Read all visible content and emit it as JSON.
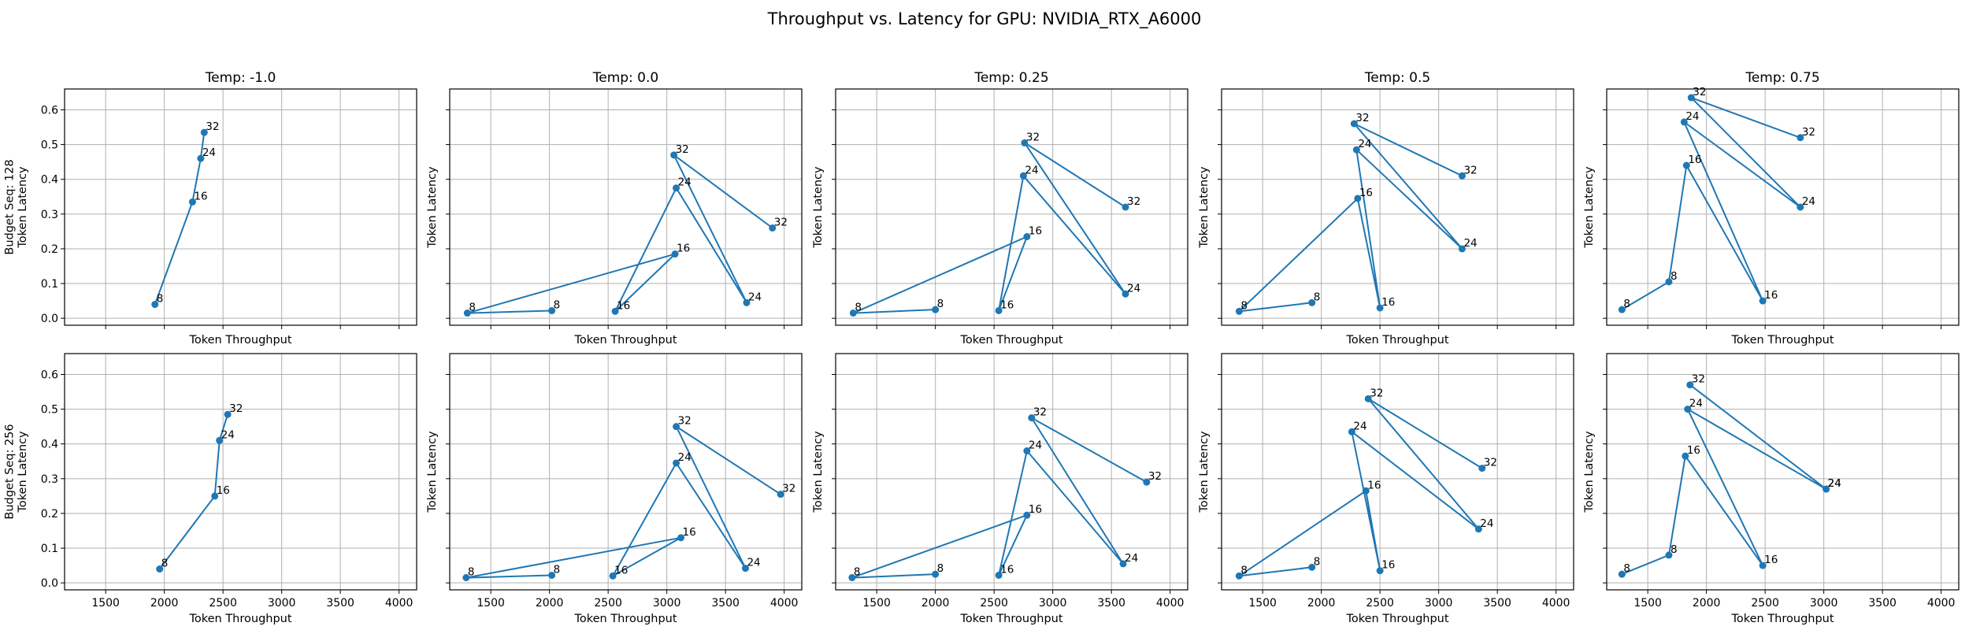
{
  "figure": {
    "title": "Throughput vs. Latency for GPU: NVIDIA_RTX_A6000"
  },
  "chart_data": [
    {
      "type": "line",
      "row": 0,
      "col": 0,
      "title": "Temp: -1.0",
      "xlabel": "Token Throughput",
      "ylabel": "Budget Seq: 128\nToken Latency",
      "xlim": [
        1150,
        4150
      ],
      "ylim": [
        -0.02,
        0.66
      ],
      "xticks": [
        1500,
        2000,
        2500,
        3000,
        3500,
        4000
      ],
      "yticks": [
        0.0,
        0.1,
        0.2,
        0.3,
        0.4,
        0.5,
        0.6
      ],
      "grid": true,
      "points": [
        {
          "x": 1920,
          "y": 0.04,
          "label": "8"
        },
        {
          "x": 2240,
          "y": 0.335,
          "label": "16"
        },
        {
          "x": 2310,
          "y": 0.46,
          "label": "24"
        },
        {
          "x": 2340,
          "y": 0.535,
          "label": "32"
        }
      ]
    },
    {
      "type": "line",
      "row": 0,
      "col": 1,
      "title": "Temp: 0.0",
      "xlabel": "Token Throughput",
      "ylabel": "Token Latency",
      "xlim": [
        1150,
        4150
      ],
      "ylim": [
        -0.02,
        0.66
      ],
      "xticks": [
        1500,
        2000,
        2500,
        3000,
        3500,
        4000
      ],
      "yticks": [
        0.0,
        0.1,
        0.2,
        0.3,
        0.4,
        0.5,
        0.6
      ],
      "grid": true,
      "points": [
        {
          "x": 2020,
          "y": 0.022,
          "label": "8"
        },
        {
          "x": 1300,
          "y": 0.015,
          "label": "8"
        },
        {
          "x": 3070,
          "y": 0.185,
          "label": "16"
        },
        {
          "x": 2560,
          "y": 0.02,
          "label": "16"
        },
        {
          "x": 3080,
          "y": 0.375,
          "label": "24"
        },
        {
          "x": 3680,
          "y": 0.045,
          "label": "24"
        },
        {
          "x": 3060,
          "y": 0.47,
          "label": "32"
        },
        {
          "x": 3900,
          "y": 0.26,
          "label": "32"
        }
      ]
    },
    {
      "type": "line",
      "row": 0,
      "col": 2,
      "title": "Temp: 0.25",
      "xlabel": "Token Throughput",
      "ylabel": "Token Latency",
      "xlim": [
        1150,
        4150
      ],
      "ylim": [
        -0.02,
        0.66
      ],
      "xticks": [
        1500,
        2000,
        2500,
        3000,
        3500,
        4000
      ],
      "yticks": [
        0.0,
        0.1,
        0.2,
        0.3,
        0.4,
        0.5,
        0.6
      ],
      "grid": true,
      "points": [
        {
          "x": 2000,
          "y": 0.025,
          "label": "8"
        },
        {
          "x": 1300,
          "y": 0.015,
          "label": "8"
        },
        {
          "x": 2780,
          "y": 0.235,
          "label": "16"
        },
        {
          "x": 2540,
          "y": 0.022,
          "label": "16"
        },
        {
          "x": 2750,
          "y": 0.41,
          "label": "24"
        },
        {
          "x": 3620,
          "y": 0.07,
          "label": "24"
        },
        {
          "x": 2760,
          "y": 0.505,
          "label": "32"
        },
        {
          "x": 3620,
          "y": 0.32,
          "label": "32"
        }
      ]
    },
    {
      "type": "line",
      "row": 0,
      "col": 3,
      "title": "Temp: 0.5",
      "xlabel": "Token Throughput",
      "ylabel": "Token Latency",
      "xlim": [
        1150,
        4150
      ],
      "ylim": [
        -0.02,
        0.66
      ],
      "xticks": [
        1500,
        2000,
        2500,
        3000,
        3500,
        4000
      ],
      "yticks": [
        0.0,
        0.1,
        0.2,
        0.3,
        0.4,
        0.5,
        0.6
      ],
      "grid": true,
      "points": [
        {
          "x": 1920,
          "y": 0.045,
          "label": "8"
        },
        {
          "x": 1300,
          "y": 0.02,
          "label": "8"
        },
        {
          "x": 2310,
          "y": 0.345,
          "label": "16"
        },
        {
          "x": 2500,
          "y": 0.03,
          "label": "16"
        },
        {
          "x": 2300,
          "y": 0.485,
          "label": "24"
        },
        {
          "x": 3200,
          "y": 0.2,
          "label": "24"
        },
        {
          "x": 2280,
          "y": 0.56,
          "label": "32"
        },
        {
          "x": 3200,
          "y": 0.41,
          "label": "32"
        }
      ]
    },
    {
      "type": "line",
      "row": 0,
      "col": 4,
      "title": "Temp: 0.75",
      "xlabel": "Token Throughput",
      "ylabel": "Token Latency",
      "xlim": [
        1150,
        4150
      ],
      "ylim": [
        -0.02,
        0.66
      ],
      "xticks": [
        1500,
        2000,
        2500,
        3000,
        3500,
        4000
      ],
      "yticks": [
        0.0,
        0.1,
        0.2,
        0.3,
        0.4,
        0.5,
        0.6
      ],
      "grid": true,
      "points": [
        {
          "x": 1280,
          "y": 0.025,
          "label": "8"
        },
        {
          "x": 1680,
          "y": 0.105,
          "label": "8"
        },
        {
          "x": 1830,
          "y": 0.44,
          "label": "16"
        },
        {
          "x": 2480,
          "y": 0.05,
          "label": "16"
        },
        {
          "x": 1810,
          "y": 0.565,
          "label": "24"
        },
        {
          "x": 2800,
          "y": 0.32,
          "label": "24"
        },
        {
          "x": 1870,
          "y": 0.635,
          "label": "32"
        },
        {
          "x": 2800,
          "y": 0.52,
          "label": "32"
        }
      ]
    },
    {
      "type": "line",
      "row": 1,
      "col": 0,
      "title": "",
      "xlabel": "Token Throughput",
      "ylabel": "Budget Seq: 256\nToken Latency",
      "xlim": [
        1150,
        4150
      ],
      "ylim": [
        -0.02,
        0.66
      ],
      "xticks": [
        1500,
        2000,
        2500,
        3000,
        3500,
        4000
      ],
      "yticks": [
        0.0,
        0.1,
        0.2,
        0.3,
        0.4,
        0.5,
        0.6
      ],
      "grid": true,
      "points": [
        {
          "x": 1960,
          "y": 0.04,
          "label": "8"
        },
        {
          "x": 2430,
          "y": 0.25,
          "label": "16"
        },
        {
          "x": 2470,
          "y": 0.41,
          "label": "24"
        },
        {
          "x": 2540,
          "y": 0.485,
          "label": "32"
        }
      ]
    },
    {
      "type": "line",
      "row": 1,
      "col": 1,
      "title": "",
      "xlabel": "Token Throughput",
      "ylabel": "Token Latency",
      "xlim": [
        1150,
        4150
      ],
      "ylim": [
        -0.02,
        0.66
      ],
      "xticks": [
        1500,
        2000,
        2500,
        3000,
        3500,
        4000
      ],
      "yticks": [
        0.0,
        0.1,
        0.2,
        0.3,
        0.4,
        0.5,
        0.6
      ],
      "grid": true,
      "points": [
        {
          "x": 2020,
          "y": 0.022,
          "label": "8"
        },
        {
          "x": 1290,
          "y": 0.015,
          "label": "8"
        },
        {
          "x": 3120,
          "y": 0.13,
          "label": "16"
        },
        {
          "x": 2540,
          "y": 0.02,
          "label": "16"
        },
        {
          "x": 3080,
          "y": 0.345,
          "label": "24"
        },
        {
          "x": 3670,
          "y": 0.042,
          "label": "24"
        },
        {
          "x": 3080,
          "y": 0.45,
          "label": "32"
        },
        {
          "x": 3970,
          "y": 0.255,
          "label": "32"
        }
      ]
    },
    {
      "type": "line",
      "row": 1,
      "col": 2,
      "title": "",
      "xlabel": "Token Throughput",
      "ylabel": "Token Latency",
      "xlim": [
        1150,
        4150
      ],
      "ylim": [
        -0.02,
        0.66
      ],
      "xticks": [
        1500,
        2000,
        2500,
        3000,
        3500,
        4000
      ],
      "yticks": [
        0.0,
        0.1,
        0.2,
        0.3,
        0.4,
        0.5,
        0.6
      ],
      "grid": true,
      "points": [
        {
          "x": 2000,
          "y": 0.025,
          "label": "8"
        },
        {
          "x": 1290,
          "y": 0.015,
          "label": "8"
        },
        {
          "x": 2780,
          "y": 0.195,
          "label": "16"
        },
        {
          "x": 2540,
          "y": 0.022,
          "label": "16"
        },
        {
          "x": 2780,
          "y": 0.38,
          "label": "24"
        },
        {
          "x": 3600,
          "y": 0.055,
          "label": "24"
        },
        {
          "x": 2820,
          "y": 0.475,
          "label": "32"
        },
        {
          "x": 3800,
          "y": 0.29,
          "label": "32"
        }
      ]
    },
    {
      "type": "line",
      "row": 1,
      "col": 3,
      "title": "",
      "xlabel": "Token Throughput",
      "ylabel": "Token Latency",
      "xlim": [
        1150,
        4150
      ],
      "ylim": [
        -0.02,
        0.66
      ],
      "xticks": [
        1500,
        2000,
        2500,
        3000,
        3500,
        4000
      ],
      "yticks": [
        0.0,
        0.1,
        0.2,
        0.3,
        0.4,
        0.5,
        0.6
      ],
      "grid": true,
      "points": [
        {
          "x": 1920,
          "y": 0.045,
          "label": "8"
        },
        {
          "x": 1300,
          "y": 0.02,
          "label": "8"
        },
        {
          "x": 2380,
          "y": 0.265,
          "label": "16"
        },
        {
          "x": 2500,
          "y": 0.035,
          "label": "16"
        },
        {
          "x": 2260,
          "y": 0.435,
          "label": "24"
        },
        {
          "x": 3340,
          "y": 0.155,
          "label": "24"
        },
        {
          "x": 2400,
          "y": 0.53,
          "label": "32"
        },
        {
          "x": 3370,
          "y": 0.33,
          "label": "32"
        }
      ]
    },
    {
      "type": "line",
      "row": 1,
      "col": 4,
      "title": "",
      "xlabel": "Token Throughput",
      "ylabel": "Token Latency",
      "xlim": [
        1150,
        4150
      ],
      "ylim": [
        -0.02,
        0.66
      ],
      "xticks": [
        1500,
        2000,
        2500,
        3000,
        3500,
        4000
      ],
      "yticks": [
        0.0,
        0.1,
        0.2,
        0.3,
        0.4,
        0.5,
        0.6
      ],
      "grid": true,
      "points": [
        {
          "x": 1280,
          "y": 0.025,
          "label": "8"
        },
        {
          "x": 1680,
          "y": 0.08,
          "label": "8"
        },
        {
          "x": 1820,
          "y": 0.365,
          "label": "16"
        },
        {
          "x": 2480,
          "y": 0.05,
          "label": "16"
        },
        {
          "x": 1840,
          "y": 0.5,
          "label": "24"
        },
        {
          "x": 3020,
          "y": 0.27,
          "label": "24"
        },
        {
          "x": 1860,
          "y": 0.57,
          "label": "32"
        },
        {
          "x": 3020,
          "y": 0.27,
          "label": "24"
        }
      ]
    }
  ]
}
